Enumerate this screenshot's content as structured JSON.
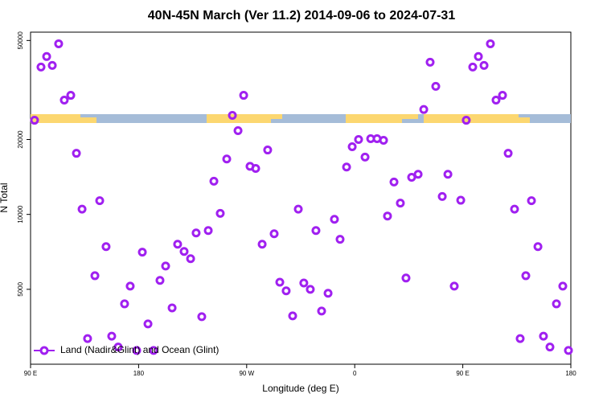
{
  "chart_data": {
    "type": "scatter",
    "title": "40N-45N March (Ver 11.2)   2014-09-06 to 2024-07-31",
    "xlabel": "Longitude (deg E)",
    "ylabel": "N Total",
    "yscale": "log",
    "legend": "lower left",
    "xlim": [
      90,
      540
    ],
    "ylim": [
      2500,
      54000
    ],
    "xticks": [
      {
        "value": 90,
        "label": "90 E"
      },
      180,
      {
        "value": 270,
        "label": "90 W"
      },
      {
        "value": 360,
        "label": "0"
      },
      {
        "value": 450,
        "label": "90 E"
      },
      {
        "value": 540,
        "label": "180"
      }
    ],
    "yticks": [
      5000,
      10000,
      20000,
      50000
    ],
    "series": [
      {
        "name": "Land (Nadir&Glint) and Ocean (Glint)",
        "color": "#a020f0",
        "x": [
          93.3,
          98.7,
          103.4,
          108.1,
          113.4,
          118.1,
          123.5,
          128.2,
          132.9,
          137.5,
          143.6,
          147.6,
          152.9,
          157.6,
          163,
          168.3,
          173,
          178.4,
          183.1,
          187.8,
          192.5,
          197.8,
          202.5,
          207.9,
          212.5,
          217.9,
          223.3,
          227.9,
          232.6,
          238,
          242.7,
          248,
          253.4,
          258.1,
          262.8,
          267.5,
          272.8,
          277.5,
          282.9,
          287.5,
          292.9,
          297.6,
          302.9,
          308.3,
          313,
          317.6,
          323,
          327.7,
          332.4,
          337.8,
          343.1,
          347.8,
          353.2,
          357.9,
          363.2,
          368.6,
          373.3,
          378.6,
          384,
          387.3,
          392.7,
          398,
          402.7,
          407.4,
          412.8,
          417.5,
          422.8,
          427.5,
          432.9,
          437.6,
          442.9,
          448.3,
          452.9,
          458.3,
          463,
          467.7,
          473,
          477.7,
          483.1,
          487.8,
          493.1,
          497.8,
          502.5,
          507.2,
          512.6,
          517.2,
          522.6,
          528,
          533.3,
          538
        ],
        "values": [
          23900,
          39100,
          43100,
          39700,
          48500,
          28800,
          30100,
          17600,
          10500,
          3170,
          5670,
          11350,
          7420,
          3240,
          2930,
          4370,
          5150,
          2840,
          7050,
          3630,
          2840,
          5430,
          6200,
          4210,
          7590,
          7100,
          6640,
          8420,
          3880,
          8610,
          13600,
          10100,
          16700,
          25000,
          21700,
          30100,
          15600,
          15300,
          7590,
          18150,
          8360,
          5340,
          4930,
          3910,
          10500,
          5300,
          5000,
          8610,
          4090,
          4820,
          9560,
          7940,
          15500,
          18700,
          20000,
          17000,
          20150,
          20150,
          19850,
          9850,
          13500,
          11100,
          5550,
          14100,
          14500,
          26400,
          40900,
          32700,
          11800,
          14500,
          5150,
          11400,
          23900,
          39100,
          43100,
          39700,
          48500,
          28800,
          30100,
          17600,
          10500,
          3170,
          5670,
          11350,
          7420,
          3240,
          2930,
          4370,
          5150,
          2840
        ]
      }
    ]
  }
}
